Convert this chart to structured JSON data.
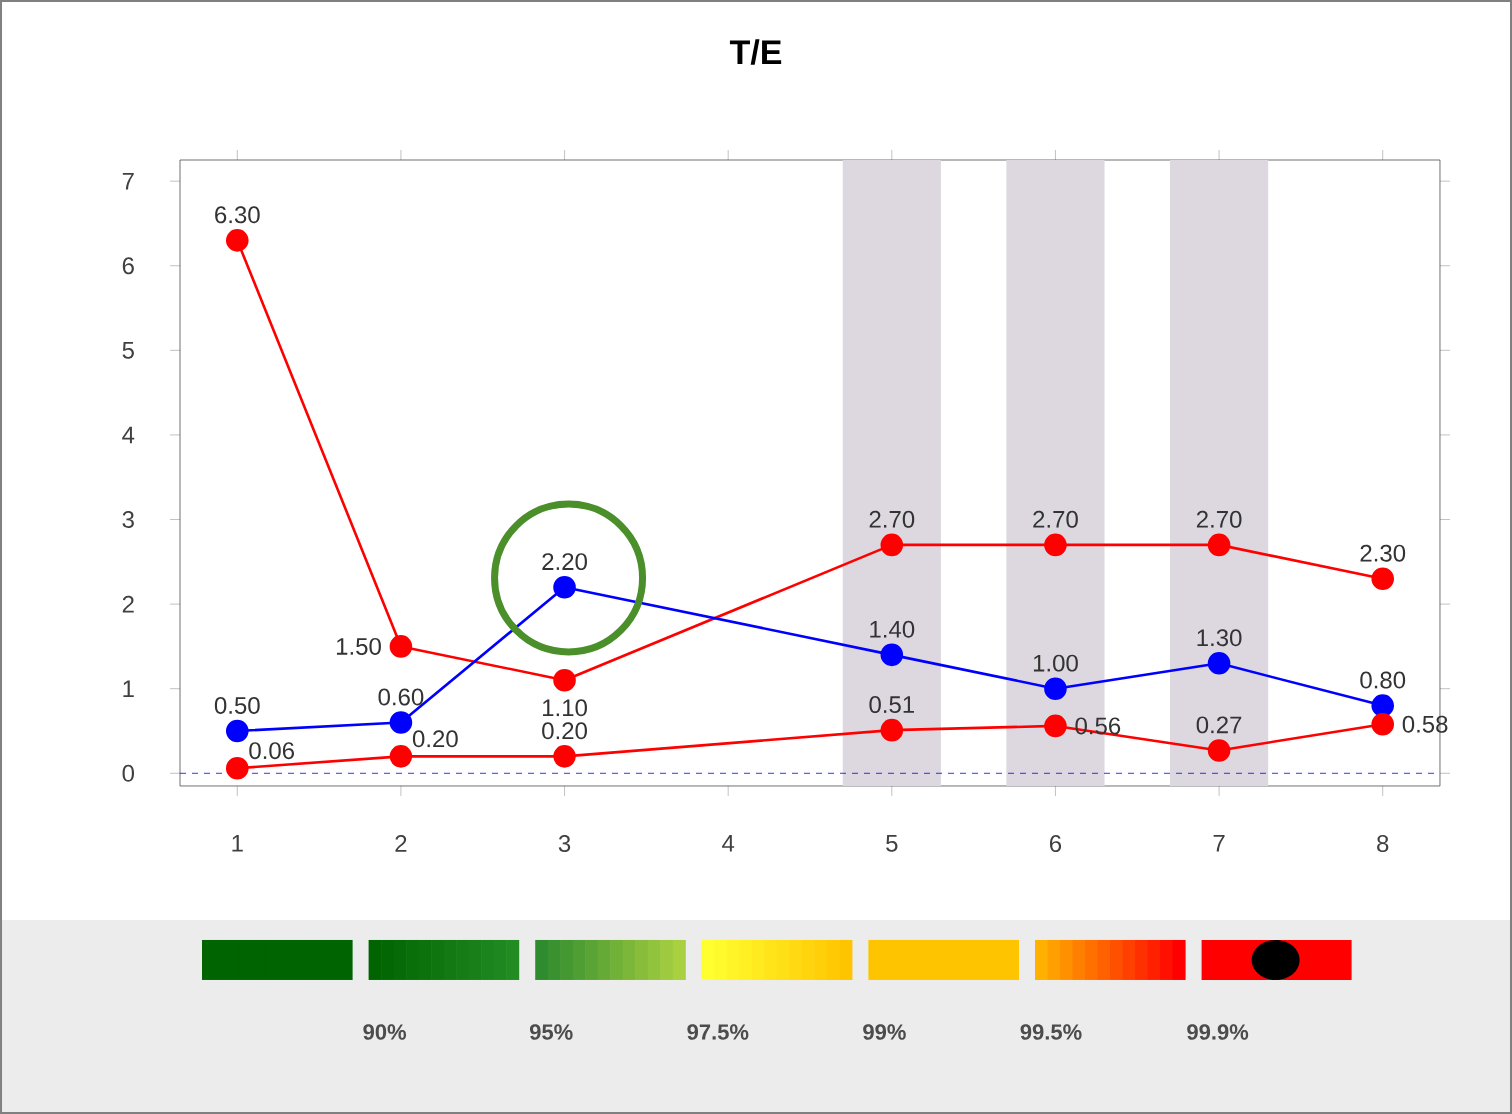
{
  "chart_data": {
    "type": "line",
    "title": "T/E",
    "x": [
      1,
      2,
      3,
      4,
      5,
      6,
      7,
      8
    ],
    "series": [
      {
        "color": "#ff0000",
        "values": [
          6.3,
          1.5,
          1.1,
          null,
          2.7,
          2.7,
          2.7,
          2.3
        ],
        "value_labels": [
          "6.30",
          "1.50",
          "1.10",
          null,
          "2.70",
          "2.70",
          "2.70",
          "2.30"
        ]
      },
      {
        "color": "#0000ff",
        "values": [
          0.5,
          0.6,
          2.2,
          null,
          1.4,
          1.0,
          1.3,
          0.8
        ],
        "value_labels": [
          "0.50",
          "0.60",
          "2.20",
          null,
          "1.40",
          "1.00",
          "1.30",
          "0.80"
        ]
      },
      {
        "color": "#ff0000",
        "values": [
          0.06,
          0.2,
          0.2,
          null,
          0.51,
          0.56,
          0.27,
          0.58
        ],
        "value_labels": [
          "0.06",
          "0.20",
          "0.20",
          null,
          "0.51",
          "0.56",
          "0.27",
          "0.58"
        ]
      }
    ],
    "xlim": [
      0.65,
      8.35
    ],
    "ylim": [
      -0.15,
      7.25
    ],
    "xticks": [
      1,
      2,
      3,
      4,
      5,
      6,
      7,
      8
    ],
    "yticks": [
      0,
      1,
      2,
      3,
      4,
      5,
      6,
      7
    ],
    "marker": "circle",
    "line_style": "solid",
    "grid": false,
    "legend": false,
    "bands": [
      {
        "axis": "x",
        "from": 4.7,
        "to": 5.3,
        "color": "#ddd8e0"
      },
      {
        "axis": "x",
        "from": 5.7,
        "to": 6.3,
        "color": "#ddd8e0"
      },
      {
        "axis": "x",
        "from": 6.7,
        "to": 7.3,
        "color": "#ddd8e0"
      }
    ],
    "ref_lines": [
      {
        "axis": "y",
        "value": 0,
        "color": "#0000ff",
        "line_style": "dashed"
      }
    ],
    "annotations": [
      "90%",
      "95%",
      "97.5%",
      "99%",
      "99.5%",
      "99.9%"
    ]
  }
}
